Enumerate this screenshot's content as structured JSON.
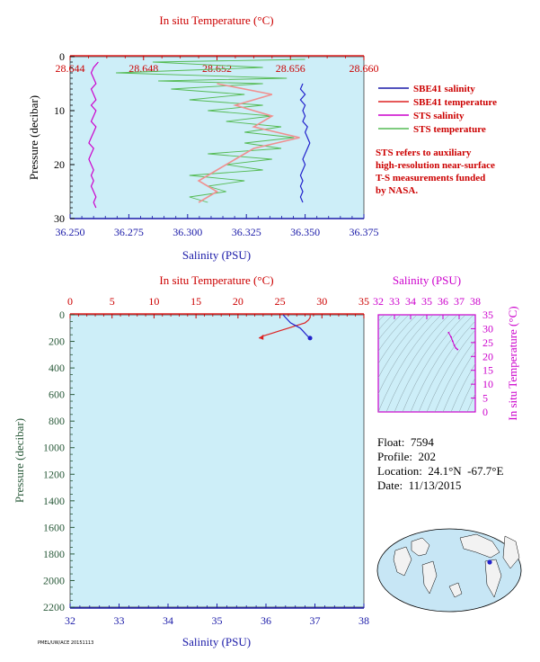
{
  "info": {
    "float_label": "Float:",
    "float": "7594",
    "profile_label": "Profile:",
    "profile": "202",
    "location_label": "Location:",
    "location": "24.1°N  -67.7°E",
    "date_label": "Date:",
    "date": "11/13/2015"
  },
  "note_lines": [
    "STS refers to auxiliary",
    "high-resolution near-surface",
    "T-S measurements funded",
    "by NASA."
  ],
  "footer": "PMEL/UW/ACE 20151113",
  "colors": {
    "axis_blue": "#1a1aa8",
    "axis_red": "#cc0000",
    "axis_green": "#2a5a3a",
    "axis_magenta": "#cc00cc",
    "plot_bg": "#cdeef8",
    "sbe_sal": "#2222cc",
    "sbe_temp": "#dd2222",
    "sts_sal": "#cc00cc",
    "sts_temp": "#55bb55",
    "sts_temp_fill": "#f09090"
  },
  "chart_data": [
    {
      "type": "line",
      "panel": "top",
      "top_axis_label": "In situ Temperature (°C)",
      "top_ticks": [
        "28.644",
        "28.648",
        "28.652",
        "28.656",
        "28.660"
      ],
      "temp_range": [
        28.644,
        28.66
      ],
      "xlabel": "Salinity (PSU)",
      "x_ticks": [
        "36.250",
        "36.275",
        "36.300",
        "36.325",
        "36.350",
        "36.375"
      ],
      "sal_range": [
        36.25,
        36.375
      ],
      "ylabel": "Pressure (decibar)",
      "y_ticks": [
        "0",
        "10",
        "20",
        "30"
      ],
      "pres_range": [
        0,
        30
      ],
      "legend": [
        {
          "name": "SBE41 salinity",
          "color": "#1a1aa8"
        },
        {
          "name": "SBE41 temperature",
          "color": "#dd2222"
        },
        {
          "name": "STS salinity",
          "color": "#cc00cc"
        },
        {
          "name": "STS temperature",
          "color": "#55bb55"
        }
      ],
      "series": [
        {
          "name": "STS salinity",
          "x_unit": "PSU",
          "points": [
            [
              36.262,
              1
            ],
            [
              36.26,
              2
            ],
            [
              36.259,
              3
            ],
            [
              36.26,
              4
            ],
            [
              36.261,
              5
            ],
            [
              36.259,
              6
            ],
            [
              36.26,
              7
            ],
            [
              36.261,
              8
            ],
            [
              36.259,
              9
            ],
            [
              36.261,
              10
            ],
            [
              36.26,
              11
            ],
            [
              36.259,
              12
            ],
            [
              36.261,
              13
            ],
            [
              36.26,
              14
            ],
            [
              36.259,
              15
            ],
            [
              36.258,
              16
            ],
            [
              36.26,
              17
            ],
            [
              36.259,
              18
            ],
            [
              36.258,
              19
            ],
            [
              36.259,
              20
            ],
            [
              36.26,
              21
            ],
            [
              36.259,
              22
            ],
            [
              36.26,
              23
            ],
            [
              36.259,
              24
            ],
            [
              36.26,
              25
            ],
            [
              36.261,
              26
            ],
            [
              36.26,
              27
            ],
            [
              36.261,
              28
            ]
          ]
        },
        {
          "name": "SBE41 salinity",
          "x_unit": "PSU",
          "points": [
            [
              36.349,
              5
            ],
            [
              36.348,
              6
            ],
            [
              36.35,
              7
            ],
            [
              36.348,
              8
            ],
            [
              36.35,
              9
            ],
            [
              36.349,
              10
            ],
            [
              36.35,
              11
            ],
            [
              36.349,
              12
            ],
            [
              36.351,
              13
            ],
            [
              36.35,
              14
            ],
            [
              36.351,
              15
            ],
            [
              36.352,
              16
            ],
            [
              36.351,
              17
            ],
            [
              36.35,
              18
            ],
            [
              36.349,
              19
            ],
            [
              36.35,
              20
            ],
            [
              36.349,
              21
            ],
            [
              36.348,
              22
            ],
            [
              36.349,
              23
            ],
            [
              36.348,
              24
            ],
            [
              36.349,
              25
            ],
            [
              36.348,
              26
            ],
            [
              36.349,
              27
            ]
          ]
        },
        {
          "name": "STS temperature",
          "x_unit": "°C",
          "points": [
            [
              28.6568,
              0.5
            ],
            [
              28.6485,
              1
            ],
            [
              28.6545,
              2
            ],
            [
              28.6465,
              3
            ],
            [
              28.6558,
              4
            ],
            [
              28.6488,
              4.5
            ],
            [
              28.6545,
              5
            ],
            [
              28.6495,
              6
            ],
            [
              28.6535,
              7
            ],
            [
              28.6505,
              8
            ],
            [
              28.6545,
              9
            ],
            [
              28.6515,
              10
            ],
            [
              28.655,
              11
            ],
            [
              28.6525,
              12
            ],
            [
              28.6555,
              13
            ],
            [
              28.6535,
              14
            ],
            [
              28.6562,
              15
            ],
            [
              28.6535,
              16
            ],
            [
              28.6555,
              17
            ],
            [
              28.6515,
              18
            ],
            [
              28.655,
              19
            ],
            [
              28.6525,
              20
            ],
            [
              28.6545,
              21
            ],
            [
              28.6505,
              22
            ],
            [
              28.6535,
              23
            ],
            [
              28.6515,
              24
            ],
            [
              28.6525,
              25
            ],
            [
              28.6505,
              26
            ],
            [
              28.6515,
              27
            ]
          ]
        },
        {
          "name": "SBE41 temperature",
          "x_unit": "°C",
          "points": [
            [
              28.652,
              5
            ],
            [
              28.655,
              7
            ],
            [
              28.653,
              9
            ],
            [
              28.655,
              11
            ],
            [
              28.654,
              13
            ],
            [
              28.6565,
              15
            ],
            [
              28.654,
              17
            ],
            [
              28.653,
              19
            ],
            [
              28.652,
              21
            ],
            [
              28.651,
              23
            ],
            [
              28.652,
              25
            ],
            [
              28.651,
              27
            ]
          ]
        }
      ]
    },
    {
      "type": "line",
      "panel": "bottom",
      "top_axis_label": "In situ Temperature (°C)",
      "top_ticks": [
        "0",
        "5",
        "10",
        "15",
        "20",
        "25",
        "30",
        "35"
      ],
      "temp_range": [
        0,
        35
      ],
      "xlabel": "Salinity (PSU)",
      "x_ticks": [
        "32",
        "33",
        "34",
        "35",
        "36",
        "37",
        "38"
      ],
      "sal_range": [
        32,
        38
      ],
      "ylabel": "Pressure (decibar)",
      "y_ticks": [
        "0",
        "200",
        "400",
        "600",
        "800",
        "1000",
        "1200",
        "1400",
        "1600",
        "1800",
        "2000",
        "2200"
      ],
      "pres_range": [
        0,
        2200
      ],
      "series": [
        {
          "name": "temperature",
          "x_unit": "°C",
          "points": [
            [
              28.6,
              0
            ],
            [
              28.6,
              20
            ],
            [
              28.4,
              40
            ],
            [
              28,
              60
            ],
            [
              27,
              80
            ],
            [
              26,
              100
            ],
            [
              25,
              120
            ],
            [
              24,
              140
            ],
            [
              23,
              160
            ],
            [
              22.5,
              175
            ]
          ]
        },
        {
          "name": "salinity",
          "x_unit": "PSU",
          "points": [
            [
              36.35,
              0
            ],
            [
              36.4,
              20
            ],
            [
              36.45,
              40
            ],
            [
              36.5,
              60
            ],
            [
              36.6,
              80
            ],
            [
              36.7,
              100
            ],
            [
              36.75,
              120
            ],
            [
              36.8,
              140
            ],
            [
              36.85,
              160
            ],
            [
              36.9,
              175
            ]
          ]
        }
      ]
    },
    {
      "type": "scatter",
      "panel": "ts",
      "top_axis_label": "Salinity (PSU)",
      "x_ticks": [
        "32",
        "33",
        "34",
        "35",
        "36",
        "37",
        "38"
      ],
      "sal_range": [
        32,
        38
      ],
      "right_axis_label": "In situ Temperature (°C)",
      "y_ticks": [
        "0",
        "5",
        "10",
        "15",
        "20",
        "25",
        "30",
        "35"
      ],
      "temp_range": [
        0,
        35
      ],
      "points": [
        [
          36.35,
          28.6
        ],
        [
          36.5,
          27
        ],
        [
          36.6,
          25.5
        ],
        [
          36.7,
          24
        ],
        [
          36.8,
          23
        ],
        [
          36.9,
          22.5
        ]
      ]
    }
  ]
}
